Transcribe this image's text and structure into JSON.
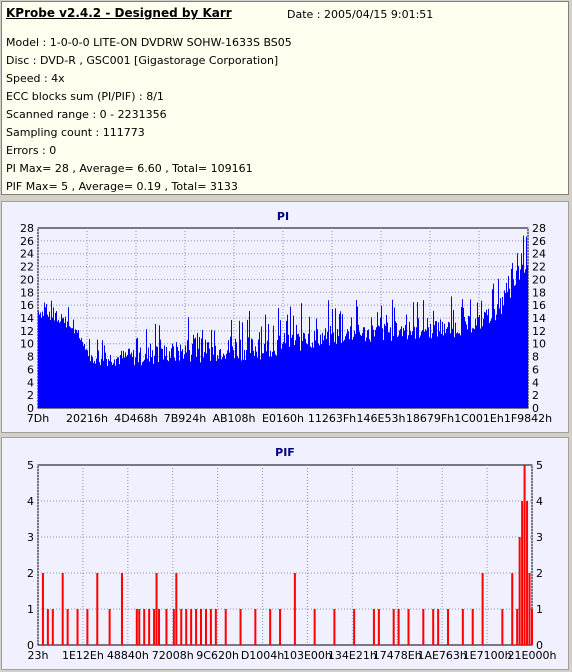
{
  "info": {
    "title": "KProbe v2.4.2 - Designed by Karr",
    "date": "Date : 2005/04/15 9:01:51",
    "lines": [
      "Model : 1-0-0-0 LITE-ON DVDRW SOHW-1633S BS05",
      "Disc : DVD-R , GSC001 [Gigastorage Corporation]",
      "Speed : 4x",
      "ECC blocks sum (PI/PIF) : 8/1",
      "Scanned range : 0 - 2231356",
      "Sampling count : 111773",
      "Errors : 0",
      "PI Max= 28 , Average= 6.60 , Total= 109161",
      "PIF Max= 5 , Average= 0.19 , Total= 3133"
    ]
  },
  "colors": {
    "pi": "#0000ff",
    "pif": "#ff0000",
    "grid": "#9090c0",
    "plot_bg": "#f0f0ff"
  },
  "chart_data": [
    {
      "type": "bar",
      "title": "PI",
      "ylim": [
        0,
        28
      ],
      "yticks": [
        0,
        2,
        4,
        6,
        8,
        10,
        12,
        14,
        16,
        18,
        20,
        22,
        24,
        26,
        28
      ],
      "xtick_labels": [
        "7Dh",
        "20216h",
        "4D468h",
        "7B924h",
        "AB108h",
        "E0160h",
        "11263Fh",
        "146E53h",
        "18679Fh",
        "1C001Eh",
        "1F9842h"
      ],
      "grid": true,
      "series": [
        {
          "values_note_free": true,
          "profile": [
            [
              0,
              14
            ],
            [
              0.05,
              13
            ],
            [
              0.09,
              10
            ],
            [
              0.11,
              6.5
            ],
            [
              0.2,
              6.5
            ],
            [
              0.3,
              7
            ],
            [
              0.45,
              7.5
            ],
            [
              0.55,
              9
            ],
            [
              0.65,
              10
            ],
            [
              0.75,
              10.5
            ],
            [
              0.85,
              11
            ],
            [
              0.9,
              12
            ],
            [
              0.94,
              14
            ],
            [
              0.965,
              17
            ],
            [
              0.985,
              20
            ],
            [
              1,
              22
            ]
          ],
          "peaks": [
            [
              0,
              19
            ],
            [
              0.02,
              17
            ],
            [
              0.06,
              16
            ],
            [
              0.1,
              11
            ],
            [
              0.2,
              13
            ],
            [
              0.3,
              15
            ],
            [
              0.5,
              16
            ],
            [
              0.6,
              17
            ],
            [
              0.7,
              17
            ],
            [
              0.8,
              17
            ],
            [
              0.9,
              18
            ],
            [
              0.95,
              21
            ],
            [
              0.975,
              24
            ],
            [
              0.99,
              28
            ],
            [
              1,
              26
            ]
          ]
        }
      ]
    },
    {
      "type": "bar",
      "title": "PIF",
      "ylim": [
        0,
        5
      ],
      "yticks": [
        0,
        1,
        2,
        3,
        4,
        5
      ],
      "xtick_labels": [
        "23h",
        "1E12Eh",
        "48840h",
        "72008h",
        "9C620h",
        "D1004h",
        "103E00h",
        "134E21h",
        "17478Eh",
        "1AE763h",
        "1E7100h",
        "21E000h"
      ],
      "grid": true,
      "series": [
        {
          "values": [
            [
              0.01,
              2
            ],
            [
              0.02,
              1
            ],
            [
              0.03,
              1
            ],
            [
              0.05,
              2
            ],
            [
              0.06,
              1
            ],
            [
              0.08,
              1
            ],
            [
              0.1,
              1
            ],
            [
              0.12,
              2
            ],
            [
              0.145,
              1
            ],
            [
              0.17,
              2
            ],
            [
              0.2,
              1
            ],
            [
              0.205,
              1
            ],
            [
              0.215,
              1
            ],
            [
              0.225,
              1
            ],
            [
              0.235,
              1
            ],
            [
              0.24,
              2
            ],
            [
              0.245,
              1
            ],
            [
              0.26,
              1
            ],
            [
              0.275,
              1
            ],
            [
              0.28,
              2
            ],
            [
              0.29,
              1
            ],
            [
              0.3,
              1
            ],
            [
              0.31,
              1
            ],
            [
              0.32,
              1
            ],
            [
              0.33,
              1
            ],
            [
              0.34,
              1
            ],
            [
              0.35,
              1
            ],
            [
              0.36,
              1
            ],
            [
              0.38,
              1
            ],
            [
              0.41,
              1
            ],
            [
              0.44,
              1
            ],
            [
              0.47,
              1
            ],
            [
              0.49,
              1
            ],
            [
              0.52,
              2
            ],
            [
              0.56,
              1
            ],
            [
              0.6,
              1
            ],
            [
              0.64,
              1
            ],
            [
              0.68,
              1
            ],
            [
              0.69,
              1
            ],
            [
              0.72,
              1
            ],
            [
              0.73,
              1
            ],
            [
              0.75,
              1
            ],
            [
              0.78,
              1
            ],
            [
              0.8,
              1
            ],
            [
              0.81,
              1
            ],
            [
              0.83,
              1
            ],
            [
              0.86,
              1
            ],
            [
              0.88,
              1
            ],
            [
              0.9,
              2
            ],
            [
              0.94,
              1
            ],
            [
              0.96,
              2
            ],
            [
              0.97,
              1
            ],
            [
              0.975,
              3
            ],
            [
              0.98,
              4
            ],
            [
              0.985,
              5
            ],
            [
              0.99,
              4
            ],
            [
              0.995,
              2
            ],
            [
              1,
              1
            ]
          ]
        }
      ]
    }
  ]
}
